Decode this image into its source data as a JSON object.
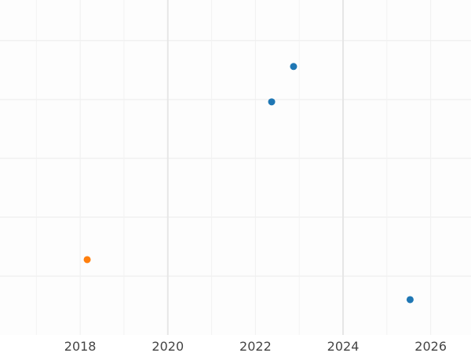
{
  "chart_data": {
    "type": "scatter",
    "title": "",
    "xlabel": "",
    "ylabel": "",
    "xlim": [
      2016.17,
      2026.92
    ],
    "ylim": [
      0,
      5.69
    ],
    "x_ticks": [
      2018,
      2020,
      2022,
      2024,
      2026
    ],
    "x_tick_labels": [
      "2018",
      "2020",
      "2022",
      "2024",
      "2026"
    ],
    "y_gridlines": [
      1,
      2,
      3,
      4,
      5
    ],
    "grid": true,
    "series": [
      {
        "color": "#1f77b4",
        "points": [
          {
            "x": 2022.87,
            "y": 4.56
          },
          {
            "x": 2022.37,
            "y": 3.96
          },
          {
            "x": 2025.53,
            "y": 0.6
          }
        ]
      },
      {
        "color": "#ff7f0e",
        "points": [
          {
            "x": 2018.16,
            "y": 1.28
          }
        ]
      }
    ]
  }
}
